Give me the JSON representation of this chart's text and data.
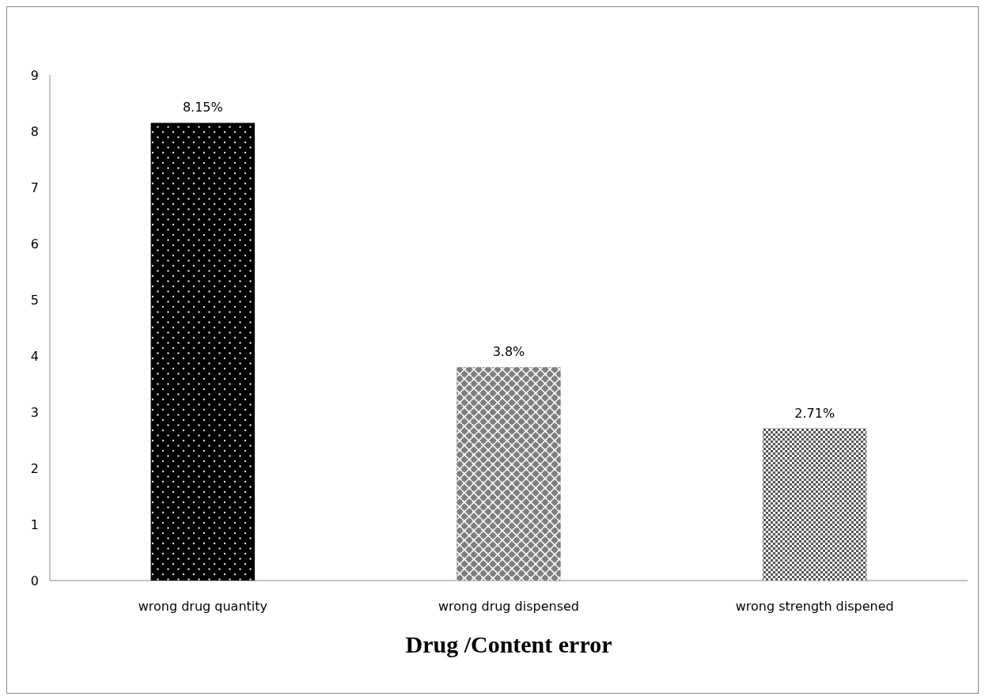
{
  "chart_data": {
    "type": "bar",
    "title": "Drug /Content error",
    "categories": [
      "wrong drug quantity",
      "wrong drug dispensed",
      "wrong strength dispened"
    ],
    "values": [
      8.15,
      3.8,
      2.71
    ],
    "value_labels": [
      "8.15%",
      "3.8%",
      "2.71%"
    ],
    "colors": [
      "#000000",
      "#7f7f7f",
      "#555555"
    ],
    "ylim": [
      0,
      9
    ],
    "yticks": [
      0,
      1,
      2,
      3,
      4,
      5,
      6,
      7,
      8,
      9
    ],
    "grid": false
  }
}
